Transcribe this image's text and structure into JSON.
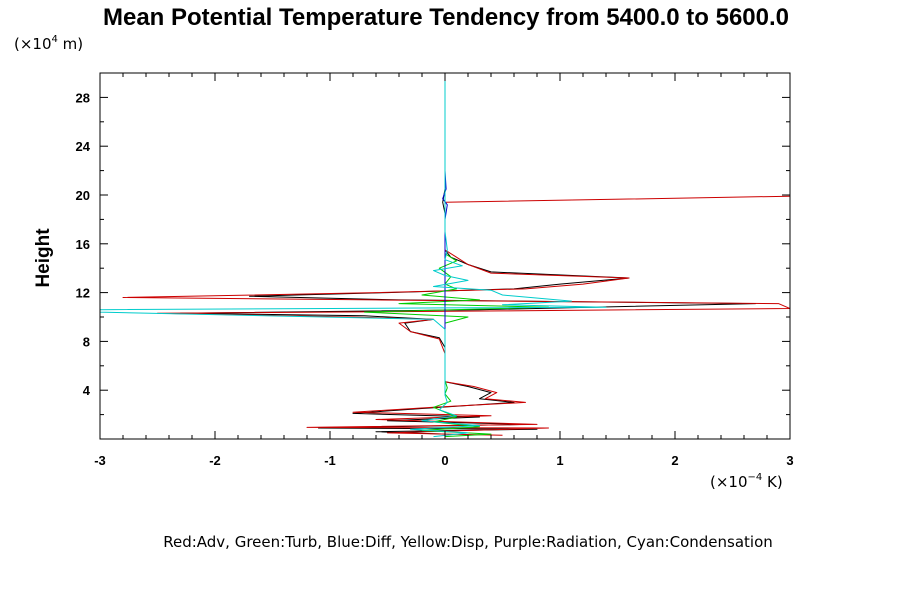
{
  "chart_data": {
    "type": "line",
    "title": "Mean Potential Temperature Tendency from 5400.0 to 5600.0",
    "ylabel": "Height",
    "y_unit_prefix": "(×10",
    "y_unit_exp": "4",
    "y_unit_suffix": " m)",
    "x_unit_prefix": "(×10",
    "x_unit_exp": "−4",
    "x_unit_suffix": " K)",
    "legend_text": "Red:Adv, Green:Turb, Blue:Diff, Yellow:Disp, Purple:Radiation, Cyan:Condensation",
    "xlim": [
      -3,
      3
    ],
    "ylim": [
      0,
      30
    ],
    "xticks": [
      -3,
      -2,
      -1,
      0,
      1,
      2,
      3
    ],
    "yticks": [
      4,
      8,
      12,
      16,
      20,
      24,
      28
    ],
    "series": [
      {
        "color": "#000000",
        "points": [
          [
            0.0,
            0.4
          ],
          [
            -0.6,
            0.6
          ],
          [
            0.8,
            0.8
          ],
          [
            -1.1,
            0.9
          ],
          [
            0.7,
            1.2
          ],
          [
            -0.5,
            1.5
          ],
          [
            0.3,
            1.8
          ],
          [
            -0.8,
            2.1
          ],
          [
            -0.2,
            2.5
          ],
          [
            0.6,
            3.0
          ],
          [
            0.3,
            3.3
          ],
          [
            0.4,
            3.8
          ],
          [
            0.2,
            4.3
          ],
          [
            0.0,
            4.7
          ],
          [
            0.0,
            5.5
          ],
          [
            0.0,
            6.5
          ],
          [
            0.0,
            7.5
          ],
          [
            -0.05,
            8.3
          ],
          [
            -0.3,
            8.8
          ],
          [
            -0.35,
            9.5
          ],
          [
            -0.1,
            9.8
          ],
          [
            -0.7,
            10.1
          ],
          [
            -2.3,
            10.3
          ],
          [
            0.3,
            10.6
          ],
          [
            2.7,
            11.1
          ],
          [
            -0.4,
            11.4
          ],
          [
            -1.7,
            11.7
          ],
          [
            -0.5,
            12.0
          ],
          [
            0.6,
            12.3
          ],
          [
            1.0,
            12.7
          ],
          [
            1.6,
            13.2
          ],
          [
            0.4,
            13.7
          ],
          [
            0.2,
            14.3
          ],
          [
            0.05,
            14.9
          ],
          [
            0.0,
            15.5
          ],
          [
            0.0,
            17.0
          ],
          [
            0.0,
            18.5
          ],
          [
            -0.02,
            19.4
          ],
          [
            0.0,
            20.5
          ],
          [
            0.0,
            22.0
          ],
          [
            0.0,
            25.0
          ],
          [
            0.0,
            28.0
          ],
          [
            0.0,
            29.8
          ]
        ]
      },
      {
        "color": "#cc0000",
        "points": [
          [
            0.5,
            0.3
          ],
          [
            -0.5,
            0.5
          ],
          [
            0.9,
            0.9
          ],
          [
            -1.2,
            0.95
          ],
          [
            0.8,
            1.2
          ],
          [
            -0.6,
            1.6
          ],
          [
            0.4,
            1.9
          ],
          [
            -0.8,
            2.2
          ],
          [
            -0.1,
            2.6
          ],
          [
            0.7,
            3.0
          ],
          [
            0.35,
            3.3
          ],
          [
            0.45,
            3.8
          ],
          [
            0.25,
            4.3
          ],
          [
            0.0,
            4.7
          ],
          [
            0.0,
            5.5
          ],
          [
            0.0,
            7.0
          ],
          [
            -0.05,
            8.2
          ],
          [
            -0.3,
            8.8
          ],
          [
            -0.4,
            9.5
          ],
          [
            -0.1,
            9.8
          ],
          [
            -0.8,
            10.0
          ],
          [
            -2.5,
            10.3
          ],
          [
            0.5,
            10.5
          ],
          [
            3.0,
            10.7
          ],
          [
            2.9,
            11.1
          ],
          [
            -0.6,
            11.4
          ],
          [
            -2.8,
            11.6
          ],
          [
            -0.6,
            12.0
          ],
          [
            0.7,
            12.3
          ],
          [
            1.2,
            12.7
          ],
          [
            1.6,
            13.2
          ],
          [
            0.4,
            13.6
          ],
          [
            0.2,
            14.3
          ],
          [
            0.1,
            14.9
          ],
          [
            0.0,
            15.5
          ],
          [
            0.0,
            17.0
          ],
          [
            0.0,
            19.4
          ],
          [
            3.0,
            19.9
          ]
        ]
      },
      {
        "color": "#00cc00",
        "points": [
          [
            0.0,
            0.2
          ],
          [
            0.4,
            0.4
          ],
          [
            -0.2,
            0.7
          ],
          [
            0.3,
            1.0
          ],
          [
            -0.1,
            1.4
          ],
          [
            0.1,
            1.8
          ],
          [
            0.0,
            2.2
          ],
          [
            -0.1,
            2.6
          ],
          [
            0.05,
            3.1
          ],
          [
            0.0,
            3.7
          ],
          [
            0.02,
            4.2
          ],
          [
            0.0,
            4.8
          ],
          [
            0.0,
            6.0
          ],
          [
            0.0,
            8.0
          ],
          [
            0.0,
            9.5
          ],
          [
            0.2,
            10.0
          ],
          [
            -0.7,
            10.4
          ],
          [
            0.9,
            10.8
          ],
          [
            -0.4,
            11.1
          ],
          [
            0.3,
            11.4
          ],
          [
            -0.2,
            11.8
          ],
          [
            0.1,
            12.3
          ],
          [
            0.0,
            12.7
          ],
          [
            0.05,
            13.3
          ],
          [
            -0.05,
            14.0
          ],
          [
            0.1,
            14.6
          ],
          [
            0.0,
            15.2
          ],
          [
            0.0,
            16.0
          ],
          [
            0.0,
            17.5
          ]
        ]
      },
      {
        "color": "#0000cc",
        "points": [
          [
            0.0,
            5.0
          ],
          [
            0.0,
            10.0
          ],
          [
            0.0,
            12.0
          ],
          [
            0.0,
            14.0
          ],
          [
            0.0,
            16.5
          ],
          [
            0.0,
            18.0
          ],
          [
            0.02,
            19.2
          ],
          [
            -0.02,
            19.7
          ],
          [
            0.01,
            20.5
          ],
          [
            0.0,
            22.0
          ],
          [
            0.0,
            25.0
          ],
          [
            0.0,
            28.0
          ],
          [
            0.0,
            29.8
          ]
        ]
      },
      {
        "color": "#00cccc",
        "points": [
          [
            -0.1,
            0.2
          ],
          [
            0.2,
            0.5
          ],
          [
            -0.3,
            0.8
          ],
          [
            0.3,
            1.1
          ],
          [
            -0.2,
            1.5
          ],
          [
            0.1,
            1.9
          ],
          [
            -0.05,
            2.4
          ],
          [
            0.02,
            3.0
          ],
          [
            0.0,
            3.6
          ],
          [
            0.0,
            5.0
          ],
          [
            0.0,
            7.0
          ],
          [
            0.0,
            9.0
          ],
          [
            -0.1,
            9.8
          ],
          [
            -3.0,
            10.4
          ],
          [
            -3.0,
            10.6
          ],
          [
            0.0,
            10.75
          ],
          [
            1.4,
            10.8
          ],
          [
            0.5,
            11.0
          ],
          [
            1.1,
            11.3
          ],
          [
            0.5,
            11.8
          ],
          [
            0.4,
            12.2
          ],
          [
            -0.1,
            12.5
          ],
          [
            0.2,
            13.0
          ],
          [
            0.0,
            13.4
          ],
          [
            -0.1,
            13.8
          ],
          [
            0.15,
            14.2
          ],
          [
            0.0,
            14.7
          ],
          [
            0.02,
            15.5
          ],
          [
            0.0,
            17.0
          ],
          [
            0.0,
            20.0
          ],
          [
            0.0,
            24.0
          ],
          [
            0.0,
            28.0
          ],
          [
            0.0,
            29.8
          ]
        ]
      }
    ]
  }
}
